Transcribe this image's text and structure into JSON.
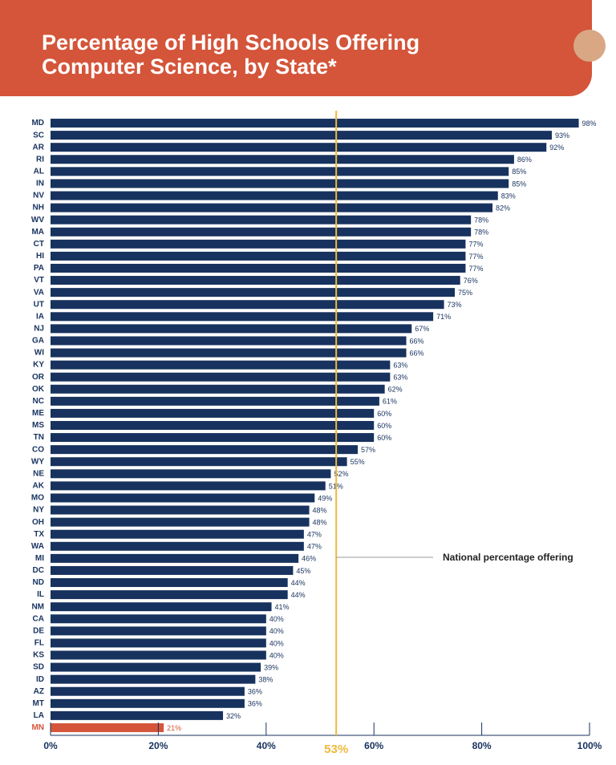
{
  "chart_data": {
    "type": "hbar",
    "title": "Percentage of High Schools Offering Computer Science, by State*",
    "categories": [
      "MD",
      "SC",
      "AR",
      "RI",
      "AL",
      "IN",
      "NV",
      "NH",
      "WV",
      "MA",
      "CT",
      "HI",
      "PA",
      "VT",
      "VA",
      "UT",
      "IA",
      "NJ",
      "GA",
      "WI",
      "KY",
      "OR",
      "OK",
      "NC",
      "ME",
      "MS",
      "TN",
      "CO",
      "WY",
      "NE",
      "AK",
      "MO",
      "NY",
      "OH",
      "TX",
      "WA",
      "MI",
      "DC",
      "ND",
      "IL",
      "NM",
      "CA",
      "DE",
      "FL",
      "KS",
      "SD",
      "ID",
      "AZ",
      "MT",
      "LA",
      "MN"
    ],
    "values": [
      98,
      93,
      92,
      86,
      85,
      85,
      83,
      82,
      78,
      78,
      77,
      77,
      77,
      76,
      75,
      73,
      71,
      67,
      66,
      66,
      63,
      63,
      62,
      61,
      60,
      60,
      60,
      57,
      55,
      52,
      51,
      49,
      48,
      48,
      47,
      47,
      46,
      45,
      44,
      44,
      41,
      40,
      40,
      40,
      40,
      39,
      38,
      36,
      36,
      32,
      21
    ],
    "value_labels": [
      "98%",
      "93%",
      "92%",
      "86%",
      "85%",
      "85%",
      "83%",
      "82%",
      "78%",
      "78%",
      "77%",
      "77%",
      "77%",
      "76%",
      "75%",
      "73%",
      "71%",
      "67%",
      "66%",
      "66%",
      "63%",
      "63%",
      "62%",
      "61%",
      "60%",
      "60%",
      "60%",
      "57%",
      "55%",
      "52%",
      "51%",
      "49%",
      "48%",
      "48%",
      "47%",
      "47%",
      "46%",
      "45%",
      "44%",
      "44%",
      "41%",
      "40%",
      "40%",
      "40%",
      "40%",
      "39%",
      "38%",
      "36%",
      "36%",
      "32%",
      "21%"
    ],
    "color": "#17325e",
    "highlight": {
      "index": 50,
      "color": "#d4553a"
    },
    "xlim": [
      0,
      100
    ],
    "xticks": [
      {
        "value": 0,
        "label": "0%"
      },
      {
        "value": 20,
        "label": "20%"
      },
      {
        "value": 40,
        "label": "40%"
      },
      {
        "value": 60,
        "label": "60%"
      },
      {
        "value": 80,
        "label": "80%"
      },
      {
        "value": 100,
        "label": "100%"
      }
    ],
    "reference_line": {
      "value": 53,
      "label": "53%",
      "annotation": "National percentage offering",
      "color": "#f0b93a"
    }
  }
}
